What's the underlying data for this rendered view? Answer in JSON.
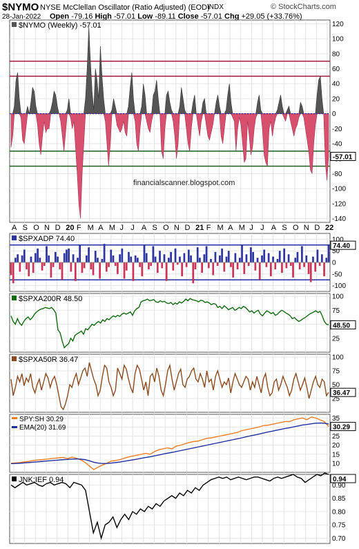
{
  "header": {
    "symbol": "$NYMO",
    "description": "NYSE McClellan Oscillator (Ratio Adjusted) (EOD)",
    "exchange": "INDX",
    "brand": "© StockCharts.com",
    "date": "28-Jan-2022",
    "open_label": "Open",
    "open": "-79.16",
    "high_label": "High",
    "high": "-57.01",
    "low_label": "Low",
    "low": "-89.11",
    "close_label": "Close",
    "close": "-57.01",
    "chg_label": "Chg",
    "chg": "+29.05 (+33.76%)"
  },
  "x_axis": {
    "labels": [
      "A",
      "S",
      "O",
      "N",
      "D",
      "20",
      "F",
      "M",
      "A",
      "M",
      "J",
      "J",
      "A",
      "S",
      "O",
      "N",
      "D",
      "21",
      "F",
      "M",
      "A",
      "M",
      "J",
      "J",
      "A",
      "S",
      "O",
      "N",
      "D",
      "22"
    ],
    "bold": [
      "20",
      "21",
      "22"
    ]
  },
  "watermark": "financialscanner.blogspot.com",
  "chart_data": [
    {
      "type": "area",
      "title": "$NYMO (Weekly) -57.01",
      "last_label": "-57.01",
      "ylim": [
        -145,
        125
      ],
      "yticks": [
        "120",
        "100",
        "80",
        "60",
        "40",
        "20",
        "0",
        "-20",
        "-40",
        "-60",
        "-80",
        "-100",
        "-120",
        "-140"
      ],
      "ytick_values": [
        120,
        100,
        80,
        60,
        40,
        20,
        0,
        -20,
        -40,
        -60,
        -80,
        -100,
        -120,
        -140
      ],
      "reference_lines": [
        {
          "value": 70,
          "color": "#a0133b"
        },
        {
          "value": 50,
          "color": "#a0133b"
        },
        {
          "value": -50,
          "color": "#1a5c1a"
        },
        {
          "value": -70,
          "color": "#1a5c1a"
        }
      ],
      "zero_line_color": "#1f2fa0",
      "positive_color": "#555555",
      "negative_color": "#d9506e",
      "values": [
        -45,
        -30,
        10,
        45,
        55,
        20,
        -5,
        -35,
        -40,
        -20,
        10,
        0,
        15,
        35,
        30,
        10,
        -15,
        -40,
        -55,
        -30,
        -10,
        -25,
        -20,
        -20,
        5,
        15,
        30,
        25,
        10,
        0,
        -10,
        -30,
        -50,
        -25,
        5,
        20,
        -5,
        -20,
        -10,
        -45,
        -80,
        -120,
        -140,
        -80,
        -40,
        20,
        60,
        115,
        70,
        30,
        5,
        60,
        45,
        20,
        90,
        50,
        20,
        -10,
        -40,
        -70,
        -40,
        5,
        20,
        10,
        -15,
        -20,
        -25,
        -20,
        -10,
        -25,
        -30,
        10,
        35,
        55,
        20,
        -10,
        -40,
        -50,
        -20,
        10,
        40,
        25,
        -10,
        -20,
        -25,
        -10,
        25,
        30,
        45,
        20,
        0,
        -50,
        -60,
        -20,
        25,
        30,
        15,
        5,
        -10,
        -30,
        -60,
        -40,
        10,
        35,
        20,
        5,
        -20,
        -40,
        -50,
        -20,
        15,
        25,
        0,
        -15,
        -30,
        -10,
        15,
        20,
        -15,
        -30,
        -35,
        -25,
        -15,
        0,
        15,
        25,
        10,
        -30,
        -40,
        -20,
        5,
        25,
        40,
        15,
        -5,
        -10,
        -50,
        -20,
        -5,
        -15,
        -40,
        -65,
        -60,
        -10,
        -30,
        -55,
        -45,
        -20,
        -5,
        15,
        25,
        5,
        -20,
        -55,
        -65,
        -70,
        -20,
        -10,
        -30,
        -15,
        -5,
        5,
        15,
        25,
        10,
        -5,
        -10,
        5,
        10,
        -10,
        -20,
        -30,
        -20,
        -15,
        -5,
        15,
        10,
        -5,
        -20,
        -35,
        -50,
        -75,
        -80,
        -40,
        -15,
        25,
        45,
        50,
        20,
        0,
        -65,
        -89,
        -57
      ],
      "bar_bounds": [
        -89,
        52
      ]
    },
    {
      "type": "bar",
      "title": "$SPXADP 74.40",
      "last_label": "74.40",
      "ylim": [
        -125,
        125
      ],
      "yticks": [
        "100",
        "50",
        "0",
        "-50",
        "-100"
      ],
      "ytick_values": [
        100,
        50,
        0,
        -50,
        -100
      ],
      "reference_lines": [
        {
          "value": 75,
          "color": "#1f2fa0"
        },
        {
          "value": -75,
          "color": "#1f2fa0"
        }
      ],
      "positive_color": "#2c35a0",
      "negative_color": "#cc3355",
      "values": [
        -55,
        -90,
        20,
        35,
        -40,
        30,
        55,
        -30,
        -60,
        25,
        -45,
        40,
        60,
        20,
        -35,
        -15,
        70,
        30,
        -65,
        -20,
        45,
        25,
        -30,
        -75,
        40,
        55,
        60,
        -40,
        35,
        -80,
        20,
        75,
        -45,
        -25,
        30,
        65,
        -30,
        -55,
        50,
        20,
        -70,
        15,
        80,
        -40,
        -20,
        55,
        30,
        -15,
        -50,
        35,
        60,
        -70,
        -35,
        45,
        25,
        -80,
        30,
        20,
        -20,
        -60,
        75,
        40,
        -30,
        -15,
        70,
        25,
        -45,
        50,
        -25,
        35,
        -80,
        20,
        45,
        -35,
        60,
        -10,
        25,
        -60,
        40,
        -20,
        55,
        30,
        -90,
        -30,
        65,
        20,
        -45,
        35,
        70,
        -25,
        15,
        -55,
        45,
        -15,
        30,
        60,
        -40,
        25,
        50,
        -20,
        -65,
        40,
        -30,
        20,
        75,
        -50,
        35,
        -15,
        65,
        45,
        -35,
        20,
        -75,
        30,
        55,
        -20,
        40,
        -60,
        25,
        -30,
        15,
        50,
        -45,
        60,
        -25,
        35,
        -15,
        -65,
        20,
        45,
        -30,
        70,
        -20,
        30,
        -50,
        -85,
        25,
        -40,
        55,
        -15,
        35,
        -60,
        20,
        74
      ]
    },
    {
      "type": "line",
      "title": "$SPXA200R 48.50",
      "last_label": "48.50",
      "ylim": [
        0,
        105
      ],
      "yticks": [
        "100",
        "75",
        "50",
        "25"
      ],
      "ytick_values": [
        100,
        75,
        50,
        25
      ],
      "color": "#0f6b0f",
      "values": [
        65,
        55,
        50,
        60,
        52,
        48,
        55,
        60,
        63,
        58,
        62,
        68,
        72,
        75,
        77,
        78,
        80,
        79,
        78,
        80,
        76,
        70,
        40,
        35,
        20,
        8,
        12,
        15,
        25,
        20,
        30,
        33,
        35,
        38,
        32,
        42,
        40,
        45,
        50,
        48,
        52,
        55,
        52,
        58,
        55,
        60,
        58,
        62,
        65,
        63,
        66,
        64,
        68,
        70,
        68,
        70,
        72,
        66,
        74,
        78,
        80,
        90,
        92,
        93,
        95,
        92,
        93,
        94,
        90,
        89,
        92,
        90,
        91,
        88,
        87,
        89,
        85,
        88,
        86,
        90,
        88,
        91,
        95,
        92,
        96,
        94,
        93,
        92,
        90,
        93,
        92,
        89,
        90,
        88,
        85,
        87,
        86,
        80,
        82,
        78,
        83,
        80,
        76,
        78,
        80,
        75,
        77,
        80,
        78,
        82,
        80,
        76,
        72,
        74,
        70,
        73,
        75,
        68,
        65,
        70,
        74,
        72,
        69,
        71,
        66,
        68,
        72,
        75,
        73,
        70,
        68,
        65,
        60,
        62,
        58,
        55,
        57,
        60,
        62,
        65,
        68,
        70,
        72,
        74,
        71,
        73,
        65,
        55,
        50,
        49
      ]
    },
    {
      "type": "line",
      "title": "$SPXA50R 36.47",
      "last_label": "36.47",
      "ylim": [
        0,
        105
      ],
      "yticks": [
        "100",
        "75",
        "50",
        "25"
      ],
      "ytick_values": [
        100,
        75,
        50,
        25
      ],
      "color": "#8b4a1e",
      "values": [
        60,
        30,
        45,
        65,
        55,
        70,
        48,
        62,
        55,
        70,
        45,
        35,
        50,
        60,
        40,
        55,
        70,
        62,
        45,
        58,
        65,
        50,
        30,
        10,
        5,
        15,
        30,
        50,
        45,
        60,
        70,
        50,
        62,
        75,
        80,
        65,
        90,
        75,
        60,
        50,
        30,
        40,
        65,
        85,
        80,
        55,
        45,
        30,
        40,
        80,
        70,
        60,
        85,
        78,
        60,
        45,
        35,
        70,
        85,
        78,
        60,
        40,
        55,
        30,
        65,
        70,
        55,
        80,
        65,
        40,
        30,
        50,
        75,
        85,
        60,
        40,
        55,
        70,
        78,
        50,
        45,
        60,
        65,
        75,
        80,
        60,
        55,
        70,
        60,
        45,
        75,
        55,
        60,
        40,
        65,
        75,
        60,
        45,
        55,
        50,
        62,
        35,
        55,
        70,
        60,
        50,
        45,
        55,
        65,
        60,
        40,
        55,
        45,
        65,
        50,
        35,
        60,
        70,
        45,
        30,
        35,
        55,
        60,
        40,
        50,
        65,
        55,
        45,
        30,
        40,
        60,
        70,
        55,
        40,
        50,
        62,
        45,
        25,
        40,
        55,
        65,
        50,
        45,
        60,
        55,
        30,
        36
      ]
    },
    {
      "type": "line",
      "title": "SPY:SH 30.29",
      "last_label": "30.29",
      "legend": [
        "SPY:SH 30.29",
        "EMA(20) 31.69"
      ],
      "ylim": [
        5,
        37
      ],
      "yticks": [
        "35",
        "30",
        "25",
        "20",
        "15",
        "10"
      ],
      "ytick_values": [
        35,
        30,
        25,
        20,
        15,
        10
      ],
      "series": [
        {
          "name": "SPY:SH 30.29",
          "color": "#f07c1f",
          "values": [
            10.0,
            10.2,
            10.4,
            10.8,
            11.0,
            11.5,
            11.8,
            12.0,
            12.2,
            12.5,
            12.8,
            13.0,
            13.2,
            12.6,
            13.4,
            12.8,
            12.0,
            10.5,
            8.5,
            6.5,
            7.8,
            9.0,
            10.0,
            11.2,
            11.5,
            12.0,
            12.8,
            13.5,
            14.0,
            14.5,
            15.0,
            15.5,
            15.0,
            16.5,
            17.5,
            18.0,
            18.5,
            18.0,
            19.5,
            20.0,
            20.8,
            21.5,
            22.0,
            22.2,
            23.0,
            23.8,
            24.0,
            24.5,
            25.0,
            25.5,
            26.0,
            26.5,
            27.0,
            28.0,
            28.5,
            29.0,
            29.5,
            30.0,
            30.8,
            31.0,
            31.5,
            32.0,
            32.5,
            33.0,
            33.0,
            34.0,
            34.5,
            35.0,
            34.0,
            35.5,
            35.0,
            34.0,
            33.0,
            30.29
          ]
        },
        {
          "name": "EMA(20) 31.69",
          "color": "#1f2fa0",
          "values": [
            9.8,
            9.9,
            10.0,
            10.2,
            10.4,
            10.6,
            10.8,
            11.0,
            11.2,
            11.4,
            11.6,
            11.8,
            12.0,
            12.1,
            12.3,
            12.4,
            12.3,
            12.0,
            11.4,
            10.6,
            10.1,
            9.9,
            9.9,
            10.1,
            10.4,
            10.7,
            11.1,
            11.5,
            11.9,
            12.3,
            12.8,
            13.2,
            13.6,
            14.1,
            14.6,
            15.1,
            15.6,
            16.0,
            16.5,
            17.0,
            17.5,
            18.0,
            18.5,
            19.0,
            19.5,
            20.0,
            20.5,
            21.0,
            21.5,
            22.0,
            22.5,
            23.0,
            23.5,
            24.0,
            24.6,
            25.1,
            25.6,
            26.1,
            26.7,
            27.2,
            27.7,
            28.2,
            28.7,
            29.2,
            29.6,
            30.1,
            30.6,
            31.1,
            31.4,
            31.8,
            32.1,
            32.2,
            32.1,
            31.69
          ]
        }
      ],
      "ema_label": "31.69"
    },
    {
      "type": "line",
      "title": "JNK:IEF 0.94",
      "last_label": "0.94",
      "ylim": [
        0.68,
        0.94
      ],
      "yticks": [
        "0.90",
        "0.85",
        "0.80",
        "0.75",
        "0.70"
      ],
      "ytick_values": [
        0.9,
        0.85,
        0.8,
        0.75,
        0.7
      ],
      "color": "#000000",
      "values": [
        0.9,
        0.89,
        0.9,
        0.91,
        0.9,
        0.905,
        0.91,
        0.9,
        0.895,
        0.905,
        0.91,
        0.9,
        0.905,
        0.91,
        0.905,
        0.89,
        0.91,
        0.905,
        0.9,
        0.88,
        0.8,
        0.72,
        0.76,
        0.7,
        0.75,
        0.76,
        0.78,
        0.74,
        0.77,
        0.79,
        0.77,
        0.8,
        0.79,
        0.81,
        0.8,
        0.82,
        0.81,
        0.83,
        0.82,
        0.84,
        0.85,
        0.86,
        0.85,
        0.87,
        0.86,
        0.88,
        0.87,
        0.89,
        0.88,
        0.9,
        0.91,
        0.92,
        0.925,
        0.93,
        0.925,
        0.93,
        0.92,
        0.925,
        0.93,
        0.925,
        0.92,
        0.925,
        0.93,
        0.93,
        0.925,
        0.92,
        0.915,
        0.925,
        0.93,
        0.925,
        0.93,
        0.935,
        0.94,
        0.93,
        0.925,
        0.91,
        0.92,
        0.93,
        0.94,
        0.935,
        0.945,
        0.94
      ]
    }
  ]
}
